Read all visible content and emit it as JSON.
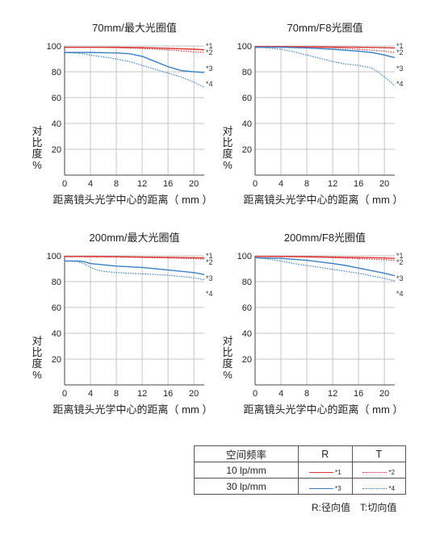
{
  "chart_data": [
    {
      "type": "line",
      "title": "70mm/最大光圈值",
      "xlabel": "距离镜头光学中心的距离（ mm ）",
      "ylabel": "对比度%",
      "xlim": [
        0,
        21.6
      ],
      "ylim": [
        0,
        100
      ],
      "xticks": [
        0,
        4,
        8,
        12,
        16,
        20
      ],
      "yticks": [
        20,
        40,
        60,
        80,
        100
      ],
      "grid": true,
      "series": [
        {
          "name": "*1",
          "style": "solid",
          "color": "#e03030",
          "x": [
            0,
            4,
            8,
            12,
            16,
            20,
            21.6
          ],
          "y": [
            99,
            99,
            99,
            98.8,
            98.2,
            97.5,
            97
          ]
        },
        {
          "name": "*2",
          "style": "dotted",
          "color": "#e03030",
          "x": [
            0,
            4,
            8,
            12,
            16,
            20,
            21.6
          ],
          "y": [
            99,
            99,
            98.7,
            98,
            97,
            95.5,
            95
          ]
        },
        {
          "name": "*3",
          "style": "solid",
          "color": "#3b7fc4",
          "x": [
            0,
            4,
            8,
            10,
            12,
            14,
            16,
            18,
            20,
            21.6
          ],
          "y": [
            95,
            95,
            94.6,
            94,
            92,
            88,
            84,
            81,
            80,
            79.5
          ]
        },
        {
          "name": "*4",
          "style": "dotted",
          "color": "#3b7fc4",
          "x": [
            0,
            2,
            4,
            6,
            8,
            10,
            12,
            14,
            16,
            18,
            20,
            21.6
          ],
          "y": [
            95,
            94.5,
            93,
            91.5,
            90,
            88,
            85,
            82,
            79,
            76,
            72,
            68
          ]
        }
      ]
    },
    {
      "type": "line",
      "title": "70mm/F8光圈值",
      "xlabel": "距离镜头光学中心的距离（ mm ）",
      "ylabel": "对比度%",
      "xlim": [
        0,
        21.6
      ],
      "ylim": [
        0,
        100
      ],
      "xticks": [
        0,
        4,
        8,
        12,
        16,
        20
      ],
      "yticks": [
        20,
        40,
        60,
        80,
        100
      ],
      "grid": true,
      "series": [
        {
          "name": "*1",
          "style": "solid",
          "color": "#e03030",
          "x": [
            0,
            4,
            8,
            12,
            16,
            20,
            21.6
          ],
          "y": [
            99.5,
            99.5,
            99.4,
            99.2,
            99,
            98.7,
            98.5
          ]
        },
        {
          "name": "*2",
          "style": "dotted",
          "color": "#e03030",
          "x": [
            0,
            4,
            8,
            12,
            16,
            20,
            21.6
          ],
          "y": [
            99.5,
            99.4,
            99.2,
            98.6,
            97.5,
            96,
            95
          ]
        },
        {
          "name": "*3",
          "style": "solid",
          "color": "#3b7fc4",
          "x": [
            0,
            4,
            8,
            12,
            16,
            18,
            20,
            21.6
          ],
          "y": [
            99,
            99,
            98.5,
            97.5,
            96,
            95,
            93,
            91
          ]
        },
        {
          "name": "*4",
          "style": "dotted",
          "color": "#3b7fc4",
          "x": [
            0,
            2,
            4,
            6,
            8,
            10,
            12,
            14,
            16,
            18,
            19,
            20,
            21,
            21.6
          ],
          "y": [
            99,
            98.5,
            97.5,
            95.5,
            93,
            90.5,
            88,
            86,
            85,
            83,
            80,
            76,
            72,
            69
          ]
        }
      ]
    },
    {
      "type": "line",
      "title": "200mm/最大光圈值",
      "xlabel": "距离镜头光学中心的距离（ mm ）",
      "ylabel": "对比度%",
      "xlim": [
        0,
        21.6
      ],
      "ylim": [
        0,
        100
      ],
      "xticks": [
        0,
        4,
        8,
        12,
        16,
        20
      ],
      "yticks": [
        20,
        40,
        60,
        80,
        100
      ],
      "grid": true,
      "series": [
        {
          "name": "*1",
          "style": "solid",
          "color": "#e03030",
          "x": [
            0,
            4,
            8,
            12,
            16,
            20,
            21.6
          ],
          "y": [
            99.5,
            99.5,
            99.3,
            99,
            98.8,
            98.5,
            98.4
          ]
        },
        {
          "name": "*2",
          "style": "dotted",
          "color": "#e03030",
          "x": [
            0,
            4,
            8,
            12,
            16,
            20,
            21.6
          ],
          "y": [
            99.4,
            99.2,
            99,
            98.7,
            98.3,
            97.8,
            97.5
          ]
        },
        {
          "name": "*3",
          "style": "solid",
          "color": "#3b7fc4",
          "x": [
            0,
            2,
            3,
            4,
            6,
            8,
            12,
            16,
            20,
            21.6
          ],
          "y": [
            96,
            96,
            95.5,
            94,
            93,
            92,
            91,
            89,
            87,
            85.5
          ]
        },
        {
          "name": "*4",
          "style": "dotted",
          "color": "#3b7fc4",
          "x": [
            0,
            2,
            3,
            4,
            5,
            6,
            8,
            12,
            16,
            20,
            21.6
          ],
          "y": [
            96,
            95.5,
            94,
            91,
            89,
            88,
            87,
            86,
            85,
            83,
            81.5
          ]
        }
      ]
    },
    {
      "type": "line",
      "title": "200mm/F8光圈值",
      "xlabel": "距离镜头光学中心的距离（ mm ）",
      "ylabel": "对比度%",
      "xlim": [
        0,
        21.6
      ],
      "ylim": [
        0,
        100
      ],
      "xticks": [
        0,
        4,
        8,
        12,
        16,
        20
      ],
      "yticks": [
        20,
        40,
        60,
        80,
        100
      ],
      "grid": true,
      "series": [
        {
          "name": "*1",
          "style": "solid",
          "color": "#e03030",
          "x": [
            0,
            4,
            8,
            12,
            16,
            20,
            21.6
          ],
          "y": [
            99.5,
            99.5,
            99.3,
            99,
            98.7,
            98.3,
            98
          ]
        },
        {
          "name": "*2",
          "style": "dotted",
          "color": "#e03030",
          "x": [
            0,
            4,
            8,
            12,
            16,
            20,
            21.6
          ],
          "y": [
            99.5,
            99.3,
            99,
            98.5,
            97.8,
            97,
            96.5
          ]
        },
        {
          "name": "*3",
          "style": "solid",
          "color": "#3b7fc4",
          "x": [
            0,
            4,
            8,
            12,
            14,
            16,
            18,
            20,
            21.6
          ],
          "y": [
            98.5,
            98,
            96.5,
            94,
            92.5,
            90.5,
            88.5,
            86.5,
            84.5
          ]
        },
        {
          "name": "*4",
          "style": "dotted",
          "color": "#3b7fc4",
          "x": [
            0,
            2,
            4,
            6,
            8,
            10,
            12,
            14,
            16,
            18,
            20,
            21.6
          ],
          "y": [
            98.5,
            97.5,
            96,
            94,
            92.5,
            91,
            89.5,
            88,
            86.5,
            84.5,
            82.5,
            80.5
          ]
        }
      ]
    }
  ],
  "legend": {
    "col_header": "空间频率",
    "r_header": "R",
    "t_header": "T",
    "rows": [
      {
        "label": "10 lp/mm",
        "r_mark": "*1",
        "t_mark": "*2",
        "color": "#e03030"
      },
      {
        "label": "30 lp/mm",
        "r_mark": "*3",
        "t_mark": "*4",
        "color": "#3b7fc4"
      }
    ]
  },
  "footnote": {
    "r_text": "R:径向值",
    "t_text": "T:切向值"
  }
}
